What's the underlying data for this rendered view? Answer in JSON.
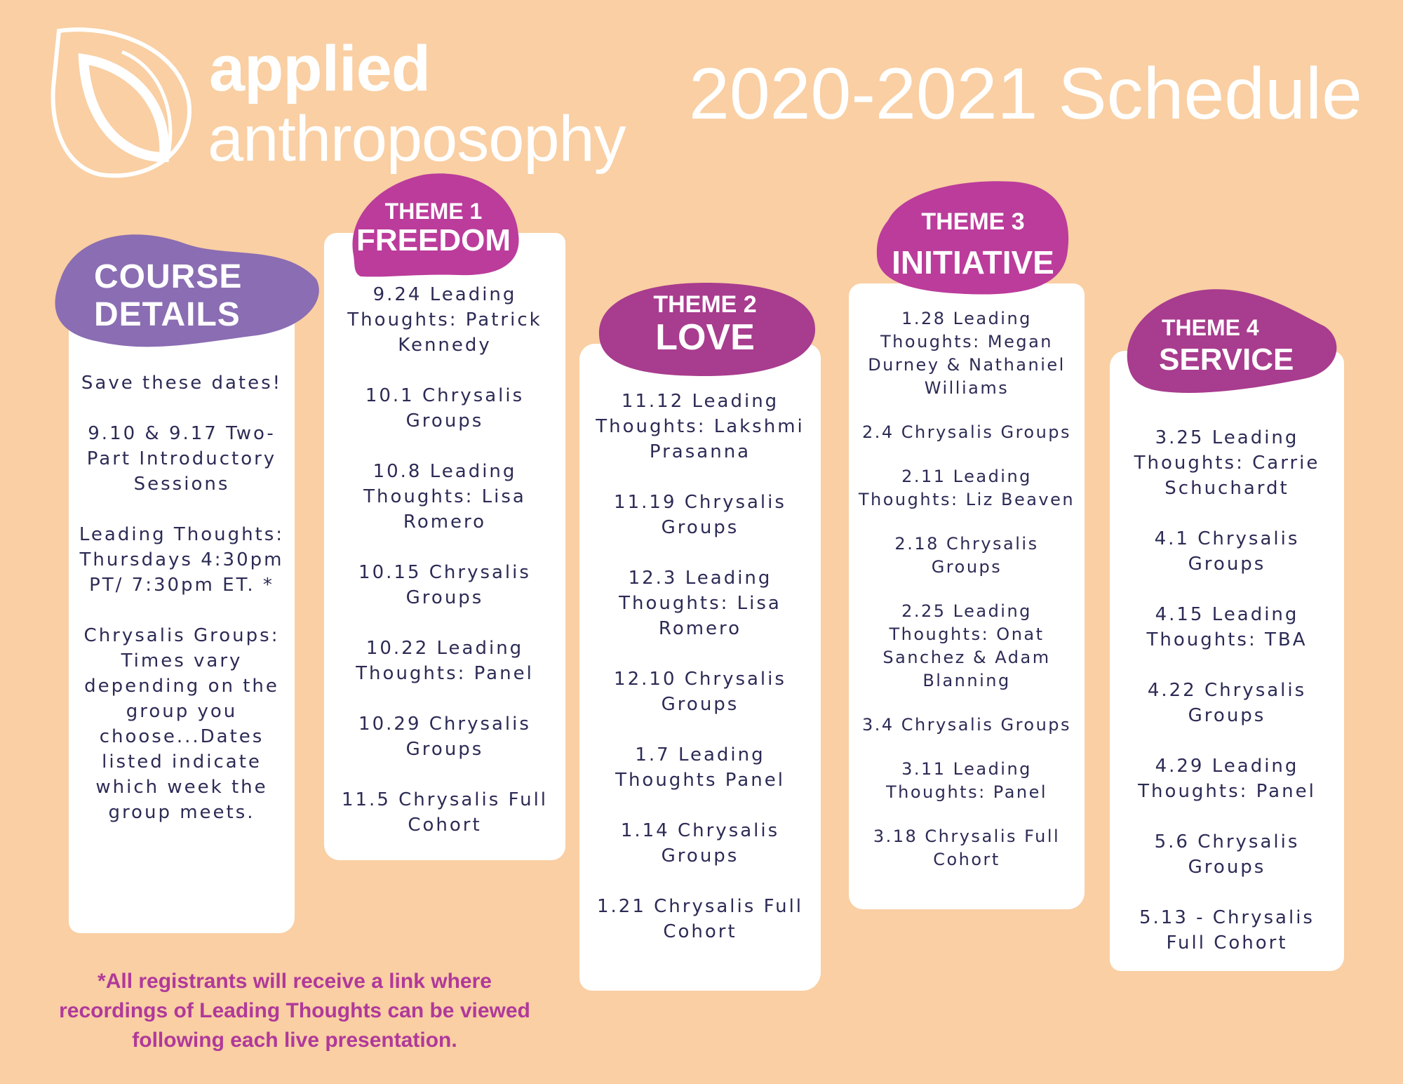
{
  "brand": {
    "line1": "applied",
    "line2": "anthroposophy"
  },
  "page_title": "2020-2021 Schedule",
  "colors": {
    "background": "#f9cfa3",
    "course_details_blob": "#8a6db3",
    "theme_blob": "#bb3c9b",
    "theme_blob_dark": "#a83c8e",
    "entry_text": "#2c2b55",
    "footnote": "#b0399a"
  },
  "course_details": {
    "heading_line1": "COURSE",
    "heading_line2": "DETAILS",
    "entries": [
      "Save these dates!",
      "9.10 & 9.17 Two- Part Introductory Sessions",
      "Leading Thoughts: Thursdays 4:30pm PT/ 7:30pm ET. *",
      "Chrysalis Groups: Times vary depending on the group you choose...Dates listed indicate which week the group meets."
    ]
  },
  "themes": [
    {
      "label": "THEME 1",
      "name": "FREEDOM",
      "entries": [
        "9.24 Leading Thoughts: Patrick Kennedy",
        "10.1 Chrysalis Groups",
        "10.8 Leading Thoughts: Lisa Romero",
        "10.15 Chrysalis Groups",
        "10.22 Leading Thoughts: Panel",
        "10.29 Chrysalis Groups",
        "11.5 Chrysalis Full Cohort"
      ]
    },
    {
      "label": "THEME 2",
      "name": "LOVE",
      "entries": [
        "11.12 Leading Thoughts: Lakshmi Prasanna",
        "11.19 Chrysalis Groups",
        "12.3 Leading Thoughts: Lisa Romero",
        "12.10 Chrysalis Groups",
        "1.7 Leading Thoughts Panel",
        "1.14  Chrysalis Groups",
        "1.21 Chrysalis Full Cohort"
      ]
    },
    {
      "label": "THEME 3",
      "name": "INITIATIVE",
      "entries": [
        "1.28 Leading Thoughts: Megan Durney & Nathaniel Williams",
        "2.4 Chrysalis Groups",
        "2.11 Leading Thoughts: Liz Beaven",
        "2.18  Chrysalis Groups",
        "2.25 Leading Thoughts: Onat Sanchez &  Adam Blanning",
        "3.4 Chrysalis  Groups",
        "3.11 Leading Thoughts: Panel",
        "3.18 Chrysalis Full Cohort"
      ]
    },
    {
      "label": "THEME 4",
      "name": "SERVICE",
      "entries": [
        "3.25 Leading Thoughts: Carrie Schuchardt",
        "4.1 Chrysalis Groups",
        "4.15 Leading Thoughts: TBA",
        "4.22 Chrysalis Groups",
        "4.29 Leading Thoughts: Panel",
        "5.6 Chrysalis Groups",
        "5.13 - Chrysalis Full Cohort"
      ]
    }
  ],
  "footnote": "*All registrants will receive a link where recordings of Leading Thoughts can be viewed following each live presentation."
}
